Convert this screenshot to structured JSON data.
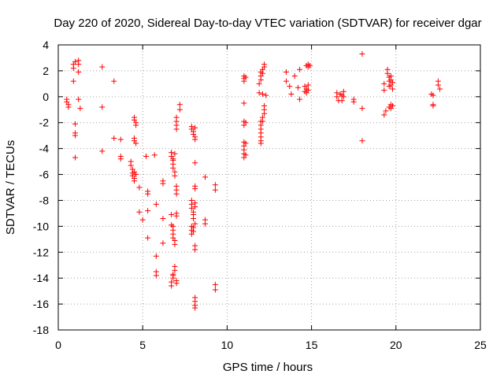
{
  "chart_data": {
    "type": "scatter",
    "title": "Day 220 of 2020, Sidereal Day-to-day VTEC variation (SDTVAR) for receiver dgar",
    "xlabel": "GPS time / hours",
    "ylabel": "SDTVAR / TECUs",
    "xlim": [
      0,
      25
    ],
    "ylim": [
      -18,
      4
    ],
    "x_ticks": [
      0,
      5,
      10,
      15,
      20,
      25
    ],
    "y_ticks": [
      -18,
      -16,
      -14,
      -12,
      -10,
      -8,
      -6,
      -4,
      -2,
      0,
      2,
      4
    ],
    "x_tick_labels": [
      "0",
      "5",
      "10",
      "15",
      "20",
      "25"
    ],
    "y_tick_labels": [
      "-18",
      "-16",
      "-14",
      "-12",
      "-10",
      "-8",
      "-6",
      "-4",
      "-2",
      "0",
      "2",
      "4"
    ],
    "grid": true,
    "marker": "+",
    "color": "#ff0000",
    "series": [
      {
        "name": "SDTVAR",
        "points": [
          [
            0.5,
            -0.2
          ],
          [
            0.5,
            -0.4
          ],
          [
            0.6,
            -0.6
          ],
          [
            0.6,
            -0.8
          ],
          [
            0.9,
            2.5
          ],
          [
            0.9,
            2.2
          ],
          [
            0.9,
            1.2
          ],
          [
            1.0,
            2.7
          ],
          [
            1.0,
            -2.1
          ],
          [
            1.0,
            -2.8
          ],
          [
            1.0,
            -3.0
          ],
          [
            1.0,
            -4.7
          ],
          [
            1.2,
            2.8
          ],
          [
            1.2,
            2.5
          ],
          [
            1.2,
            1.9
          ],
          [
            1.2,
            -0.2
          ],
          [
            1.3,
            -0.9
          ],
          [
            2.6,
            2.3
          ],
          [
            2.6,
            -0.8
          ],
          [
            2.6,
            -4.2
          ],
          [
            3.3,
            1.2
          ],
          [
            3.3,
            -3.2
          ],
          [
            3.7,
            -3.3
          ],
          [
            3.7,
            -4.6
          ],
          [
            3.7,
            -4.8
          ],
          [
            4.3,
            -5.0
          ],
          [
            4.3,
            -5.3
          ],
          [
            4.4,
            -5.6
          ],
          [
            4.4,
            -5.9
          ],
          [
            4.4,
            -6.1
          ],
          [
            4.5,
            -6.3
          ],
          [
            4.5,
            -6.5
          ],
          [
            4.5,
            -5.8
          ],
          [
            4.6,
            -6.0
          ],
          [
            4.5,
            -1.6
          ],
          [
            4.5,
            -1.8
          ],
          [
            4.6,
            -2.0
          ],
          [
            4.6,
            -2.2
          ],
          [
            4.5,
            -3.2
          ],
          [
            4.5,
            -3.4
          ],
          [
            4.6,
            -3.6
          ],
          [
            4.8,
            -7.0
          ],
          [
            4.8,
            -8.9
          ],
          [
            5.0,
            -9.5
          ],
          [
            5.2,
            -4.6
          ],
          [
            5.3,
            -7.3
          ],
          [
            5.3,
            -7.5
          ],
          [
            5.3,
            -8.8
          ],
          [
            5.3,
            -10.9
          ],
          [
            5.7,
            -4.5
          ],
          [
            5.8,
            -8.3
          ],
          [
            5.8,
            -12.3
          ],
          [
            5.8,
            -13.5
          ],
          [
            5.8,
            -13.8
          ],
          [
            6.2,
            -6.5
          ],
          [
            6.2,
            -6.7
          ],
          [
            6.2,
            -9.4
          ],
          [
            6.2,
            -11.3
          ],
          [
            6.7,
            -4.3
          ],
          [
            6.7,
            -4.6
          ],
          [
            6.8,
            -4.9
          ],
          [
            6.8,
            -5.2
          ],
          [
            6.8,
            -5.5
          ],
          [
            6.9,
            -5.8
          ],
          [
            6.9,
            -6.1
          ],
          [
            6.9,
            -4.4
          ],
          [
            6.8,
            -4.8
          ],
          [
            6.7,
            -9.1
          ],
          [
            6.7,
            -9.9
          ],
          [
            6.8,
            -10.3
          ],
          [
            6.8,
            -10.6
          ],
          [
            6.8,
            -10.9
          ],
          [
            6.9,
            -11.1
          ],
          [
            6.9,
            -11.4
          ],
          [
            6.8,
            -10.0
          ],
          [
            6.7,
            -14.6
          ],
          [
            6.7,
            -14.3
          ],
          [
            6.8,
            -14.0
          ],
          [
            6.8,
            -13.7
          ],
          [
            6.9,
            -13.4
          ],
          [
            6.9,
            -13.1
          ],
          [
            6.8,
            -13.8
          ],
          [
            7.0,
            -1.6
          ],
          [
            7.0,
            -1.9
          ],
          [
            7.0,
            -2.2
          ],
          [
            7.0,
            -2.5
          ],
          [
            7.0,
            -6.9
          ],
          [
            7.0,
            -7.2
          ],
          [
            7.0,
            -7.5
          ],
          [
            7.0,
            -9.0
          ],
          [
            7.0,
            -9.2
          ],
          [
            7.0,
            -14.2
          ],
          [
            7.0,
            -14.4
          ],
          [
            7.2,
            -0.6
          ],
          [
            7.2,
            -1.0
          ],
          [
            7.9,
            -2.3
          ],
          [
            7.9,
            -2.5
          ],
          [
            8.0,
            -2.7
          ],
          [
            8.0,
            -2.9
          ],
          [
            8.1,
            -3.1
          ],
          [
            8.1,
            -3.3
          ],
          [
            8.1,
            -2.4
          ],
          [
            7.9,
            -8.0
          ],
          [
            7.9,
            -8.3
          ],
          [
            7.9,
            -8.6
          ],
          [
            8.0,
            -8.9
          ],
          [
            8.0,
            -9.1
          ],
          [
            8.0,
            -9.4
          ],
          [
            8.1,
            -8.2
          ],
          [
            8.1,
            -8.5
          ],
          [
            7.9,
            -10.0
          ],
          [
            7.9,
            -10.3
          ],
          [
            7.9,
            -10.6
          ],
          [
            8.0,
            -10.4
          ],
          [
            8.0,
            -10.1
          ],
          [
            8.1,
            -9.8
          ],
          [
            8.1,
            -5.1
          ],
          [
            8.1,
            -6.9
          ],
          [
            8.1,
            -7.1
          ],
          [
            8.1,
            -11.5
          ],
          [
            8.1,
            -11.8
          ],
          [
            8.1,
            -15.5
          ],
          [
            8.1,
            -15.8
          ],
          [
            8.1,
            -16.1
          ],
          [
            8.1,
            -16.3
          ],
          [
            8.7,
            -6.2
          ],
          [
            8.7,
            -9.5
          ],
          [
            8.7,
            -9.8
          ],
          [
            9.3,
            -6.8
          ],
          [
            9.3,
            -7.2
          ],
          [
            9.3,
            -14.5
          ],
          [
            9.3,
            -14.9
          ],
          [
            11.0,
            1.6
          ],
          [
            11.0,
            1.4
          ],
          [
            11.0,
            1.2
          ],
          [
            11.0,
            -0.5
          ],
          [
            11.0,
            -1.9
          ],
          [
            11.0,
            -2.2
          ],
          [
            11.0,
            -3.5
          ],
          [
            11.0,
            -3.8
          ],
          [
            11.0,
            -4.1
          ],
          [
            11.0,
            -4.4
          ],
          [
            11.0,
            -4.7
          ],
          [
            11.1,
            1.5
          ],
          [
            11.1,
            -2.0
          ],
          [
            11.1,
            -3.6
          ],
          [
            11.1,
            -4.5
          ],
          [
            11.9,
            0.3
          ],
          [
            11.9,
            1.0
          ],
          [
            12.0,
            1.3
          ],
          [
            12.0,
            1.6
          ],
          [
            12.0,
            1.9
          ],
          [
            12.1,
            2.1
          ],
          [
            12.1,
            1.8
          ],
          [
            12.1,
            0.2
          ],
          [
            12.0,
            -1.9
          ],
          [
            12.0,
            -2.2
          ],
          [
            12.0,
            -2.5
          ],
          [
            12.0,
            -2.8
          ],
          [
            12.0,
            -3.1
          ],
          [
            12.0,
            -3.4
          ],
          [
            12.0,
            -3.6
          ],
          [
            12.1,
            -1.6
          ],
          [
            12.1,
            -1.9
          ],
          [
            12.2,
            -1.3
          ],
          [
            12.2,
            -1.0
          ],
          [
            12.2,
            -0.7
          ],
          [
            12.2,
            2.3
          ],
          [
            12.2,
            2.5
          ],
          [
            12.3,
            0.1
          ],
          [
            13.5,
            1.9
          ],
          [
            13.5,
            1.2
          ],
          [
            13.7,
            0.8
          ],
          [
            13.8,
            0.2
          ],
          [
            14.0,
            1.6
          ],
          [
            14.2,
            0.7
          ],
          [
            14.3,
            2.1
          ],
          [
            14.3,
            -0.2
          ],
          [
            14.6,
            0.4
          ],
          [
            14.6,
            0.8
          ],
          [
            14.7,
            0.6
          ],
          [
            14.7,
            0.3
          ],
          [
            14.8,
            0.9
          ],
          [
            14.8,
            0.5
          ],
          [
            14.7,
            2.4
          ],
          [
            14.8,
            2.5
          ],
          [
            14.8,
            2.3
          ],
          [
            14.9,
            2.4
          ],
          [
            16.5,
            0.3
          ],
          [
            16.5,
            0.0
          ],
          [
            16.6,
            -0.3
          ],
          [
            16.7,
            0.2
          ],
          [
            16.8,
            0.1
          ],
          [
            16.8,
            -0.3
          ],
          [
            16.9,
            0.4
          ],
          [
            16.9,
            0.0
          ],
          [
            17.5,
            -0.2
          ],
          [
            17.5,
            -0.4
          ],
          [
            18.0,
            3.3
          ],
          [
            18.0,
            -0.9
          ],
          [
            18.0,
            -3.4
          ],
          [
            19.3,
            1.0
          ],
          [
            19.3,
            0.5
          ],
          [
            19.3,
            -1.4
          ],
          [
            19.4,
            -1.1
          ],
          [
            19.5,
            2.1
          ],
          [
            19.5,
            1.8
          ],
          [
            19.6,
            1.5
          ],
          [
            19.6,
            1.2
          ],
          [
            19.6,
            0.8
          ],
          [
            19.7,
            1.6
          ],
          [
            19.7,
            1.3
          ],
          [
            19.7,
            0.9
          ],
          [
            19.6,
            -0.8
          ],
          [
            19.7,
            -0.6
          ],
          [
            19.7,
            -0.9
          ],
          [
            19.8,
            1.1
          ],
          [
            19.8,
            0.6
          ],
          [
            19.8,
            -0.7
          ],
          [
            22.1,
            0.2
          ],
          [
            22.2,
            0.1
          ],
          [
            22.2,
            -0.6
          ],
          [
            22.2,
            -0.7
          ],
          [
            22.5,
            1.2
          ],
          [
            22.5,
            0.9
          ],
          [
            22.6,
            0.6
          ]
        ]
      }
    ]
  }
}
